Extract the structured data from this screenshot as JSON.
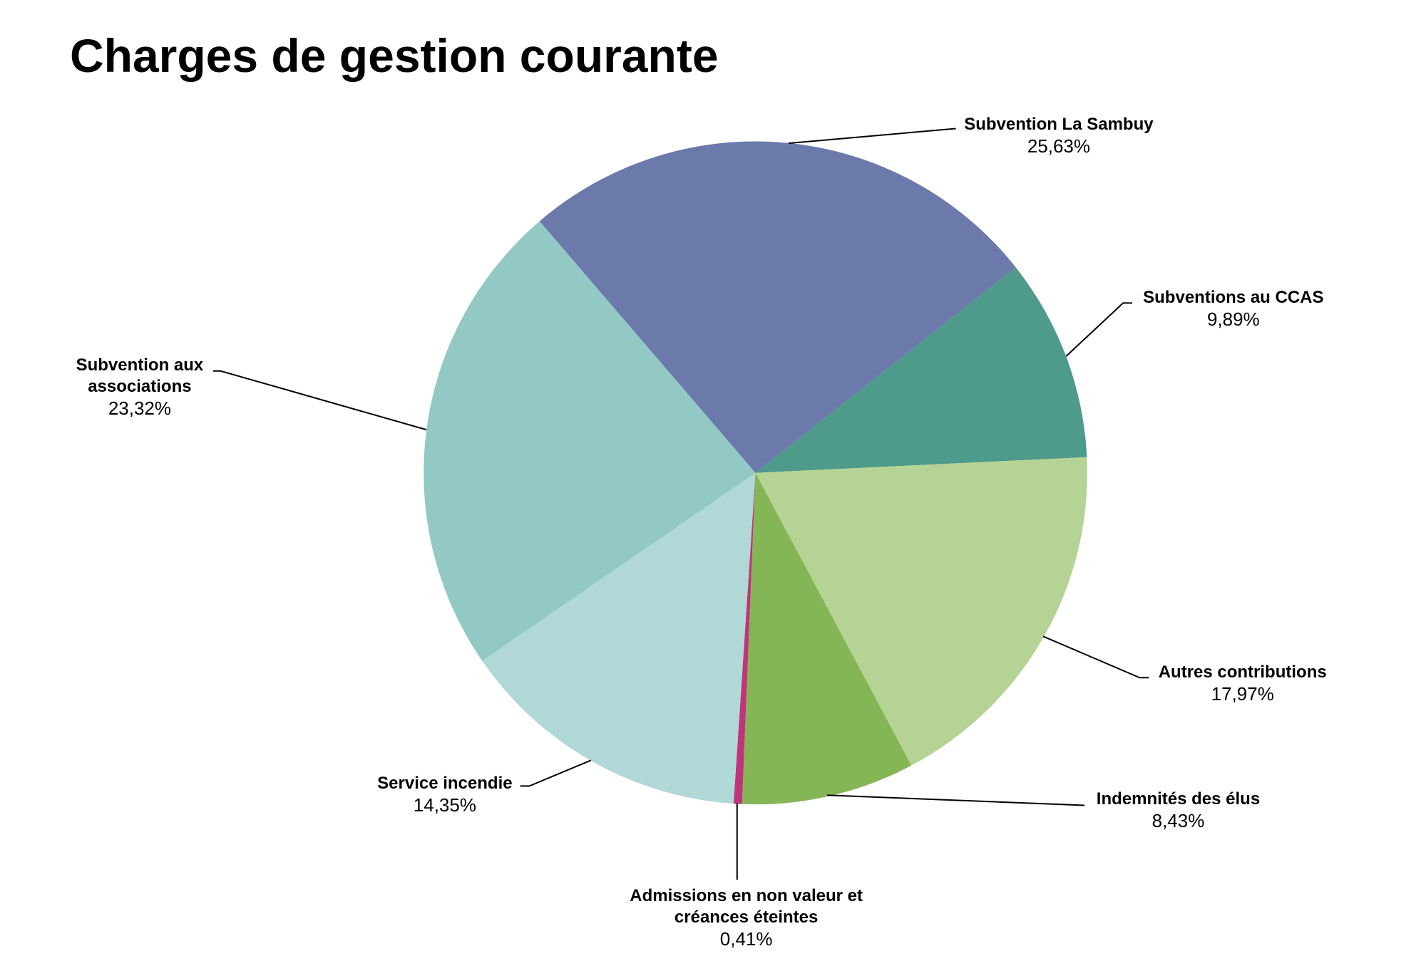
{
  "chart_data": {
    "type": "pie",
    "title": "Charges de gestion courante",
    "categories": [
      "Subvention La Sambuy",
      "Subventions au CCAS",
      "Autres contributions",
      "Indemnités des élus",
      "Admissions en non valeur et créances éteintes",
      "Service incendie",
      "Subvention aux associations"
    ],
    "values": [
      25.63,
      9.89,
      17.97,
      8.43,
      0.41,
      14.35,
      23.32
    ],
    "value_labels": [
      "25,63%",
      "9,89%",
      "17,97%",
      "8,43%",
      "0,41%",
      "14,35%",
      "23,32%"
    ],
    "colors": [
      "#6b79ab",
      "#4e9a8b",
      "#b5d394",
      "#84b655",
      "#c0357a",
      "#afd8d7",
      "#92c9c5"
    ]
  }
}
